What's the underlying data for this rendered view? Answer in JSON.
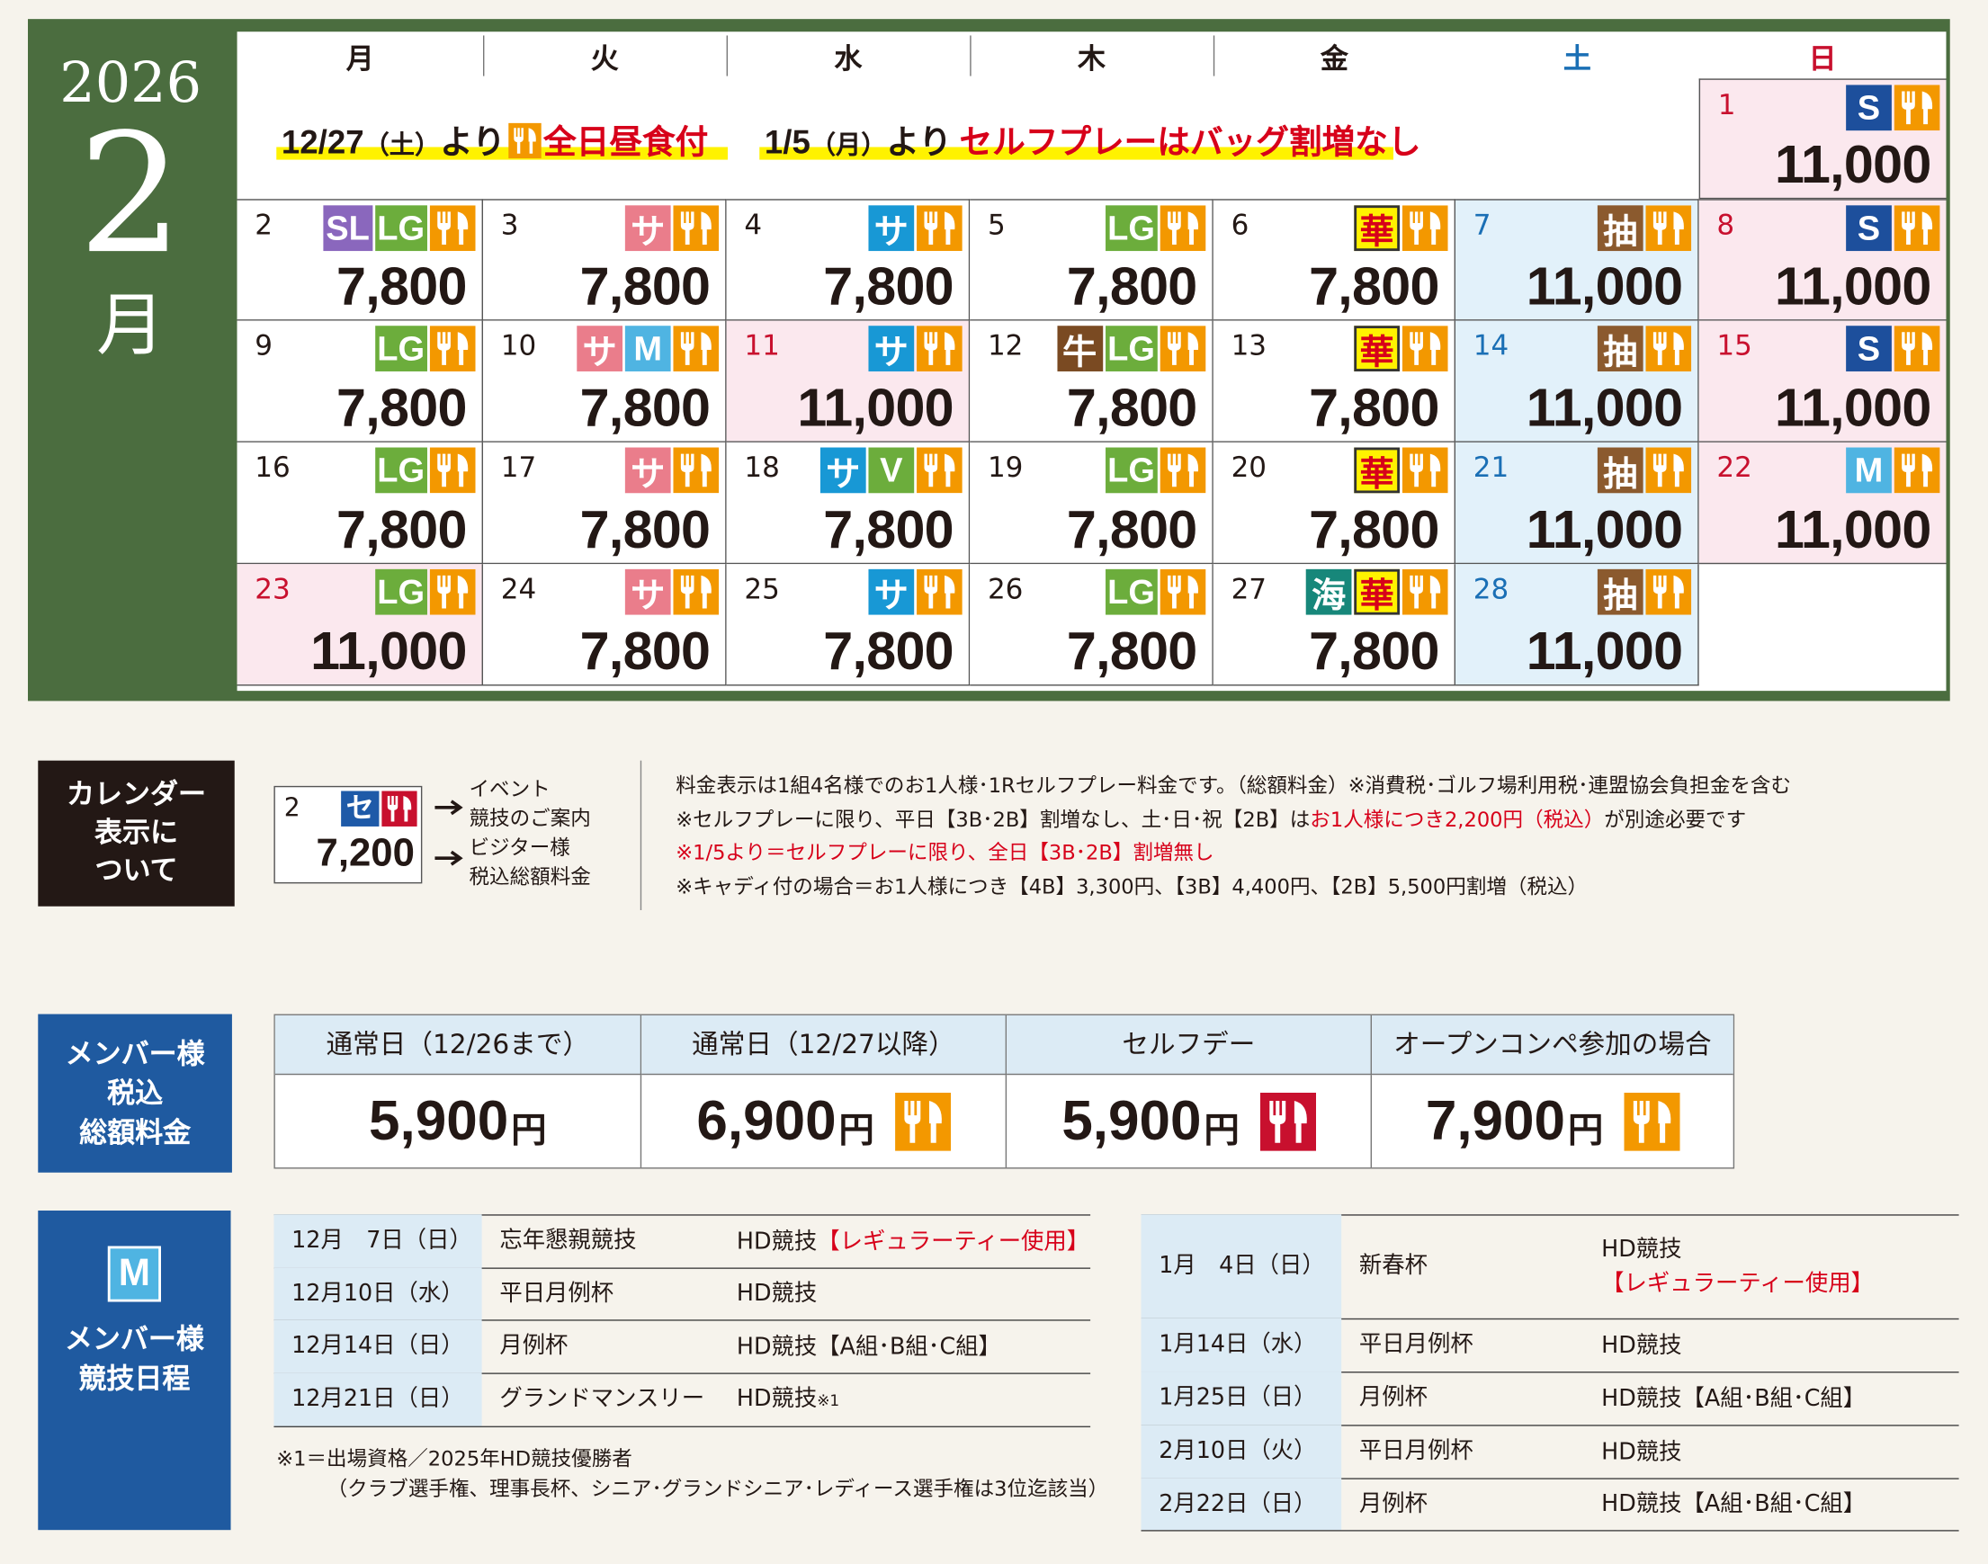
{
  "header": {
    "year": "2026",
    "month": "2",
    "month_unit": "月"
  },
  "calendar": {
    "weekdays": [
      "月",
      "火",
      "水",
      "木",
      "金",
      "土",
      "日"
    ],
    "notices": [
      {
        "date": "12/27",
        "dow": "（土）",
        "from": "より",
        "text": "全日昼食付"
      },
      {
        "date": "1/5",
        "dow": "（月）",
        "from": "より",
        "text": "セルフプレーはバッグ割増なし"
      }
    ],
    "days": [
      {
        "day": "1",
        "style": "sun",
        "price": "11,000",
        "badges": [
          {
            "t": "S",
            "bg": "#1d4f9c"
          }
        ]
      },
      {
        "day": "2",
        "style": "w",
        "price": "7,800",
        "badges": [
          {
            "t": "SL",
            "bg": "#8a67bd"
          },
          {
            "t": "LG",
            "bg": "#6cad3c"
          }
        ]
      },
      {
        "day": "3",
        "style": "w",
        "price": "7,800",
        "badges": [
          {
            "t": "サ",
            "bg": "#ea7d8b"
          }
        ]
      },
      {
        "day": "4",
        "style": "w",
        "price": "7,800",
        "badges": [
          {
            "t": "サ",
            "bg": "#1898d5"
          }
        ]
      },
      {
        "day": "5",
        "style": "w",
        "price": "7,800",
        "badges": [
          {
            "t": "LG",
            "bg": "#6cad3c"
          }
        ]
      },
      {
        "day": "6",
        "style": "w",
        "price": "7,800",
        "badges": [
          {
            "t": "華",
            "bg": "#fff200",
            "fg": "#d7001a",
            "bd": "#333333"
          }
        ]
      },
      {
        "day": "7",
        "style": "sat",
        "price": "11,000",
        "badges": [
          {
            "t": "抽",
            "bg": "#8b5a2e"
          }
        ]
      },
      {
        "day": "8",
        "style": "sun",
        "price": "11,000",
        "badges": [
          {
            "t": "S",
            "bg": "#1d4f9c"
          }
        ]
      },
      {
        "day": "9",
        "style": "w",
        "price": "7,800",
        "badges": [
          {
            "t": "LG",
            "bg": "#6cad3c"
          }
        ]
      },
      {
        "day": "10",
        "style": "w",
        "price": "7,800",
        "badges": [
          {
            "t": "サ",
            "bg": "#ea7d8b"
          },
          {
            "t": "M",
            "bg": "#4fb4e2"
          }
        ]
      },
      {
        "day": "11",
        "style": "sun",
        "price": "11,000",
        "badges": [
          {
            "t": "サ",
            "bg": "#1898d5"
          }
        ]
      },
      {
        "day": "12",
        "style": "w",
        "price": "7,800",
        "badges": [
          {
            "t": "牛",
            "bg": "#7a4a22"
          },
          {
            "t": "LG",
            "bg": "#6cad3c"
          }
        ]
      },
      {
        "day": "13",
        "style": "w",
        "price": "7,800",
        "badges": [
          {
            "t": "華",
            "bg": "#fff200",
            "fg": "#d7001a",
            "bd": "#333333"
          }
        ]
      },
      {
        "day": "14",
        "style": "sat",
        "price": "11,000",
        "badges": [
          {
            "t": "抽",
            "bg": "#8b5a2e"
          }
        ]
      },
      {
        "day": "15",
        "style": "sun",
        "price": "11,000",
        "badges": [
          {
            "t": "S",
            "bg": "#1d4f9c"
          }
        ]
      },
      {
        "day": "16",
        "style": "w",
        "price": "7,800",
        "badges": [
          {
            "t": "LG",
            "bg": "#6cad3c"
          }
        ]
      },
      {
        "day": "17",
        "style": "w",
        "price": "7,800",
        "badges": [
          {
            "t": "サ",
            "bg": "#ea7d8b"
          }
        ]
      },
      {
        "day": "18",
        "style": "w",
        "price": "7,800",
        "badges": [
          {
            "t": "サ",
            "bg": "#1898d5"
          },
          {
            "t": "V",
            "bg": "#6cad3c"
          }
        ]
      },
      {
        "day": "19",
        "style": "w",
        "price": "7,800",
        "badges": [
          {
            "t": "LG",
            "bg": "#6cad3c"
          }
        ]
      },
      {
        "day": "20",
        "style": "w",
        "price": "7,800",
        "badges": [
          {
            "t": "華",
            "bg": "#fff200",
            "fg": "#d7001a",
            "bd": "#333333"
          }
        ]
      },
      {
        "day": "21",
        "style": "sat",
        "price": "11,000",
        "badges": [
          {
            "t": "抽",
            "bg": "#8b5a2e"
          }
        ]
      },
      {
        "day": "22",
        "style": "sun",
        "price": "11,000",
        "badges": [
          {
            "t": "M",
            "bg": "#4fb4e2"
          }
        ]
      },
      {
        "day": "23",
        "style": "sun",
        "price": "11,000",
        "badges": [
          {
            "t": "LG",
            "bg": "#6cad3c"
          }
        ]
      },
      {
        "day": "24",
        "style": "w",
        "price": "7,800",
        "badges": [
          {
            "t": "サ",
            "bg": "#ea7d8b"
          }
        ]
      },
      {
        "day": "25",
        "style": "w",
        "price": "7,800",
        "badges": [
          {
            "t": "サ",
            "bg": "#1898d5"
          }
        ]
      },
      {
        "day": "26",
        "style": "w",
        "price": "7,800",
        "badges": [
          {
            "t": "LG",
            "bg": "#6cad3c"
          }
        ]
      },
      {
        "day": "27",
        "style": "w",
        "price": "7,800",
        "badges": [
          {
            "t": "海",
            "bg": "#17877a"
          },
          {
            "t": "華",
            "bg": "#fff200",
            "fg": "#d7001a",
            "bd": "#333333"
          }
        ]
      },
      {
        "day": "28",
        "style": "sat",
        "price": "11,000",
        "badges": [
          {
            "t": "抽",
            "bg": "#8b5a2e"
          }
        ]
      }
    ]
  },
  "legend": {
    "title": [
      "カレンダー",
      "表示に",
      "ついて"
    ],
    "sample": {
      "day": "2",
      "badge": "セ",
      "price": "7,200"
    },
    "labels": [
      "イベント",
      "競技のご案内",
      "ビジター様",
      "税込総額料金"
    ],
    "notes": [
      [
        {
          "t": "料金表示は1組4名様でのお1人様･1Rセルフプレー料金です。（総額料金）※消費税･ゴルフ場利用税･連盟協会負担金を含む"
        }
      ],
      [
        {
          "t": "※セルフプレーに限り、平日【3B･2B】割増なし、土･日･祝【2B】は"
        },
        {
          "t": "お1人様につき2,200円（税込）",
          "red": true
        },
        {
          "t": "が別途必要です"
        }
      ],
      [
        {
          "t": "※1/5より＝セルフプレーに限り、全日【3B･2B】割増無し",
          "red": true
        }
      ],
      [
        {
          "t": "※キャディ付の場合＝お1人様につき【4B】3,300円、【3B】4,400円、【2B】5,500円割増（税込）"
        }
      ]
    ]
  },
  "member_prices": {
    "title": [
      "メンバー様",
      "税込",
      "総額料金"
    ],
    "columns": [
      {
        "header": "通常日（12/26まで）",
        "price": "5,900",
        "unit": "円",
        "icon": null
      },
      {
        "header": "通常日（12/27以降）",
        "price": "6,900",
        "unit": "円",
        "icon": "#f39800"
      },
      {
        "header": "セルフデー",
        "price": "5,900",
        "unit": "円",
        "icon": "#c8102e"
      },
      {
        "header": "オープンコンペ参加の場合",
        "price": "7,900",
        "unit": "円",
        "icon": "#f39800"
      }
    ]
  },
  "competitions": {
    "badge": "M",
    "title": [
      "メンバー様",
      "競技日程"
    ],
    "left": [
      {
        "date": "12月　7日（日）",
        "name": "忘年懇親競技",
        "detail": [
          {
            "t": "HD競技"
          },
          {
            "t": "【レギュラーティー使用】",
            "red": true
          }
        ]
      },
      {
        "date": "12月10日（水）",
        "name": "平日月例杯",
        "detail": [
          {
            "t": "HD競技"
          }
        ]
      },
      {
        "date": "12月14日（日）",
        "name": "月例杯",
        "detail": [
          {
            "t": "HD競技【A組･B組･C組】"
          }
        ]
      },
      {
        "date": "12月21日（日）",
        "name": "グランドマンスリー",
        "detail": [
          {
            "t": "HD競技"
          },
          {
            "t": "※1",
            "small": true
          }
        ]
      }
    ],
    "right": [
      {
        "date": "1月　4日（日）",
        "name": "新春杯",
        "detail": [
          {
            "t": "HD競技"
          },
          {
            "t": "【レギュラーティー使用】",
            "red": true,
            "br": true
          }
        ]
      },
      {
        "date": "1月14日（水）",
        "name": "平日月例杯",
        "detail": [
          {
            "t": "HD競技"
          }
        ]
      },
      {
        "date": "1月25日（日）",
        "name": "月例杯",
        "detail": [
          {
            "t": "HD競技【A組･B組･C組】"
          }
        ]
      },
      {
        "date": "2月10日（火）",
        "name": "平日月例杯",
        "detail": [
          {
            "t": "HD競技"
          }
        ]
      },
      {
        "date": "2月22日（日）",
        "name": "月例杯",
        "detail": [
          {
            "t": "HD競技【A組･B組･C組】"
          }
        ]
      }
    ],
    "footnotes": [
      "※1＝出場資格／2025年HD競技優勝者",
      "（クラブ選手権、理事長杯、シニア･グランドシニア･レディース選手権は3位迄該当）"
    ]
  }
}
